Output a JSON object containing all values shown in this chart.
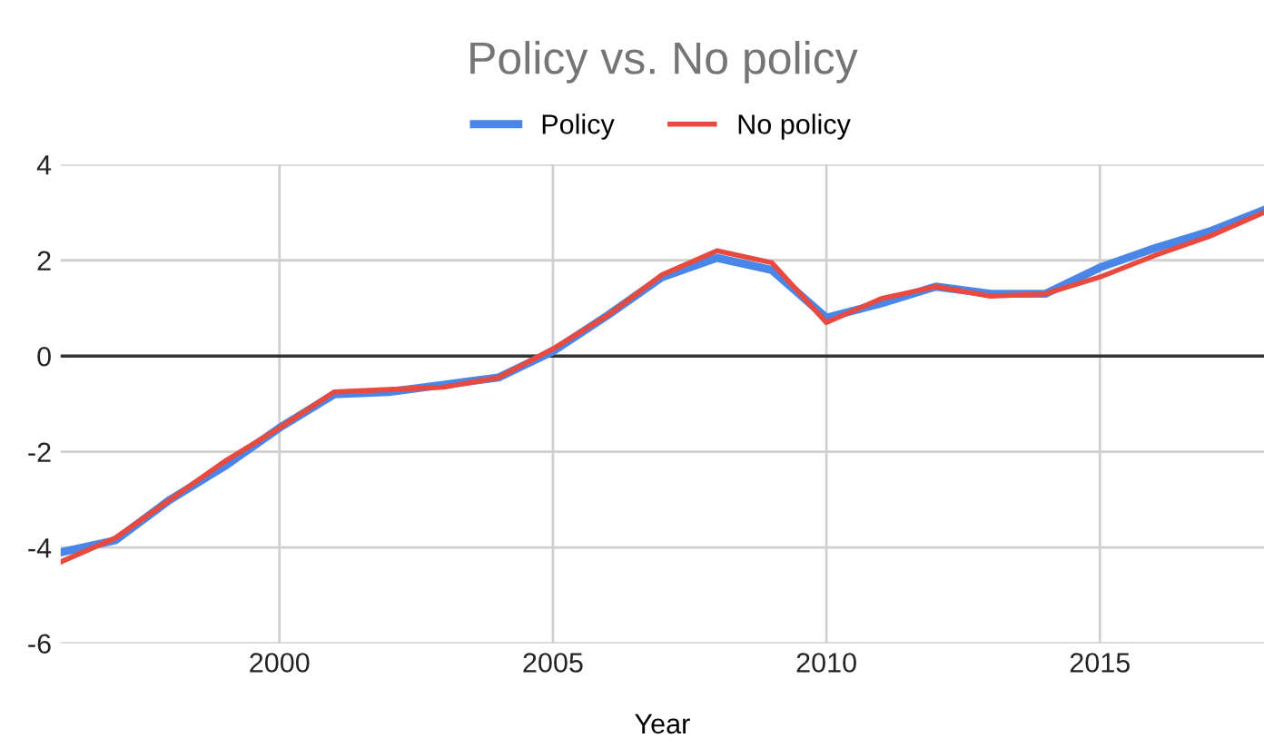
{
  "chart_data": {
    "type": "line",
    "title": "Policy vs. No policy",
    "xlabel": "Year",
    "x": [
      1996,
      1997,
      1998,
      1999,
      2000,
      2001,
      2002,
      2003,
      2004,
      2005,
      2006,
      2007,
      2008,
      2009,
      2010,
      2011,
      2012,
      2013,
      2014,
      2015,
      2016,
      2017,
      2018
    ],
    "series": [
      {
        "name": "Policy",
        "color": "#4a86e8",
        "values": [
          -4.1,
          -3.85,
          -3.0,
          -2.3,
          -1.5,
          -0.8,
          -0.75,
          -0.6,
          -0.45,
          0.1,
          0.85,
          1.65,
          2.05,
          1.8,
          0.8,
          1.1,
          1.45,
          1.3,
          1.3,
          1.85,
          2.25,
          2.6,
          3.05
        ]
      },
      {
        "name": "No policy",
        "color": "#e84a3f",
        "values": [
          -4.3,
          -3.8,
          -3.0,
          -2.2,
          -1.5,
          -0.75,
          -0.7,
          -0.65,
          -0.45,
          0.15,
          0.85,
          1.7,
          2.2,
          1.95,
          0.7,
          1.2,
          1.45,
          1.25,
          1.3,
          1.65,
          2.1,
          2.5,
          3.0
        ]
      }
    ],
    "xlim": [
      1996,
      2018
    ],
    "xticks": [
      2000,
      2005,
      2010,
      2015
    ],
    "ylim": [
      -6,
      4
    ],
    "yticks": [
      -6,
      -4,
      -2,
      0,
      2,
      4
    ],
    "ref_lines": [
      {
        "axis": "y",
        "value": 0,
        "color": "#333333"
      }
    ],
    "grid": true,
    "legend": "top",
    "marker": "none",
    "line_style": "solid"
  }
}
